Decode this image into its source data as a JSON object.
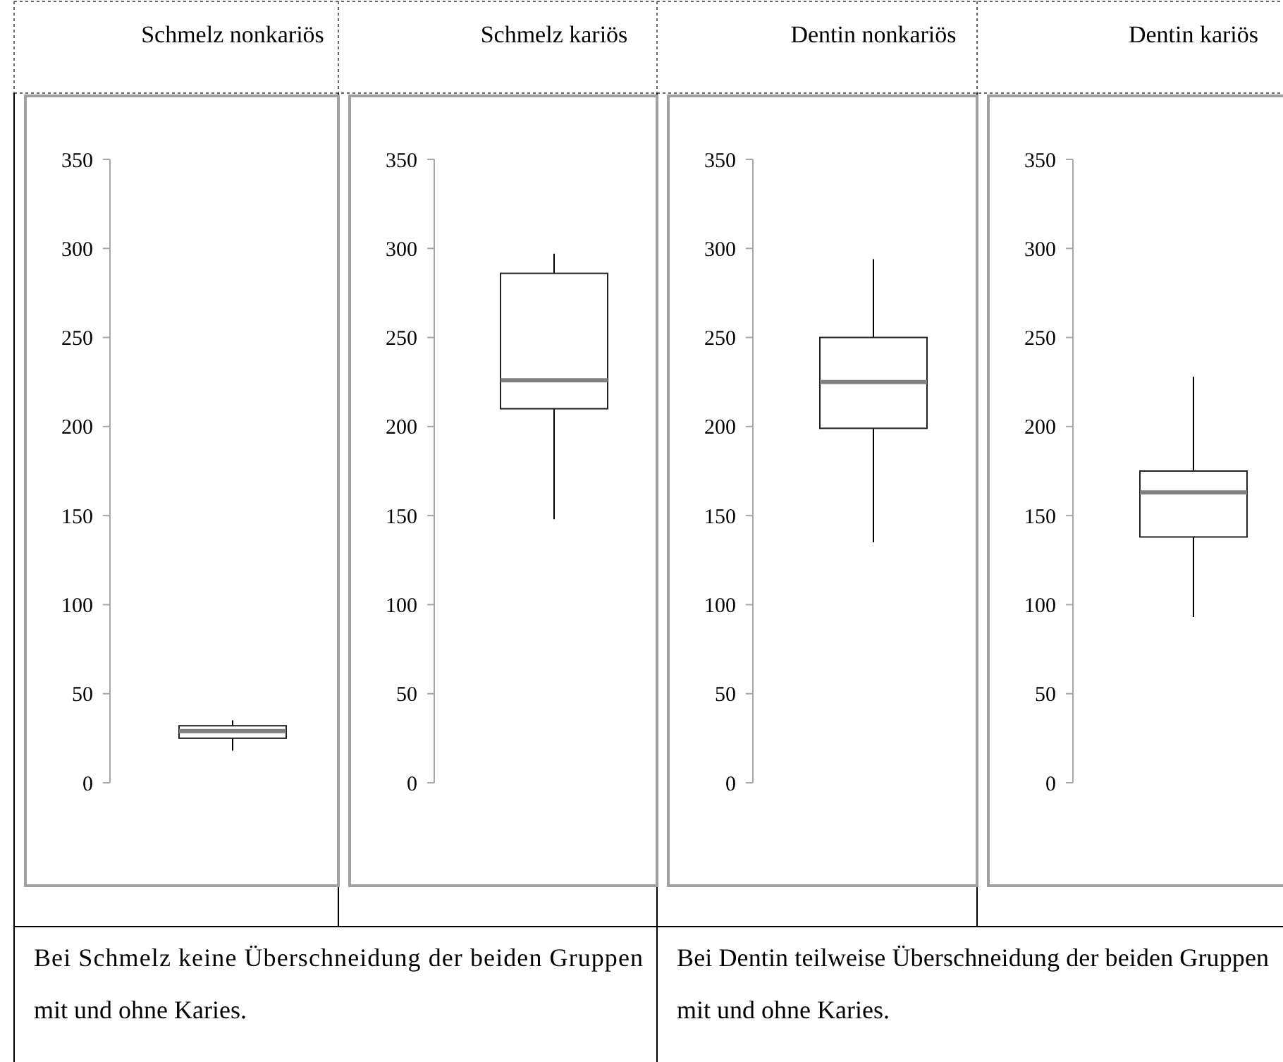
{
  "chart_data": [
    {
      "type": "box",
      "categories": [
        "Schmelz nonkariös"
      ],
      "ylim": [
        0,
        350
      ],
      "yticks": [
        0,
        50,
        100,
        150,
        200,
        250,
        300,
        350
      ],
      "annotations": [
        "Bei Schmelz keine Überschneidung der beiden Gruppen mit und ohne Karies."
      ],
      "boxes": [
        {
          "low": 18,
          "q1": 25,
          "median": 29,
          "q3": 32,
          "high": 35
        }
      ]
    },
    {
      "type": "box",
      "categories": [
        "Schmelz kariös"
      ],
      "ylim": [
        0,
        350
      ],
      "yticks": [
        0,
        50,
        100,
        150,
        200,
        250,
        300,
        350
      ],
      "boxes": [
        {
          "low": 148,
          "q1": 210,
          "median": 226,
          "q3": 286,
          "high": 297
        }
      ]
    },
    {
      "type": "box",
      "categories": [
        "Dentin nonkariös"
      ],
      "ylim": [
        0,
        350
      ],
      "yticks": [
        0,
        50,
        100,
        150,
        200,
        250,
        300,
        350
      ],
      "annotations": [
        "Bei Dentin teilweise Überschneidung der beiden Gruppen mit und ohne Karies."
      ],
      "boxes": [
        {
          "low": 135,
          "q1": 199,
          "median": 225,
          "q3": 250,
          "high": 294
        }
      ]
    },
    {
      "type": "box",
      "categories": [
        "Dentin kariös"
      ],
      "ylim": [
        0,
        350
      ],
      "yticks": [
        0,
        50,
        100,
        150,
        200,
        250,
        300,
        350
      ],
      "boxes": [
        {
          "low": 93,
          "q1": 138,
          "median": 163,
          "q3": 175,
          "high": 228
        }
      ]
    }
  ]
}
